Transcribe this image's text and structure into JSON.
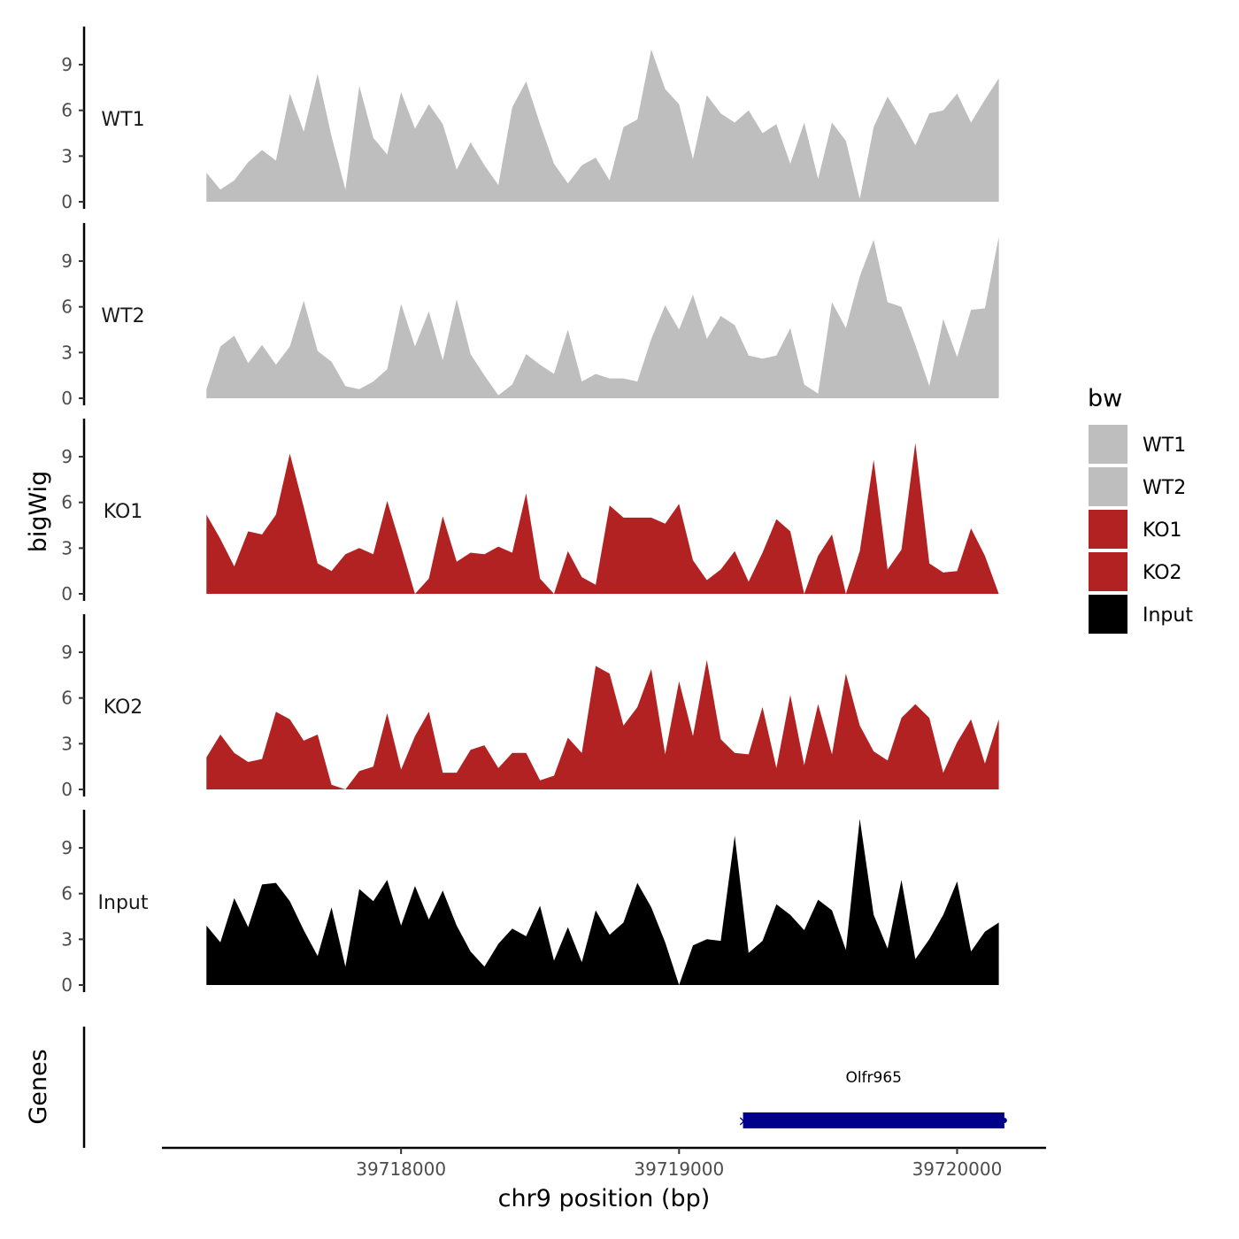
{
  "chart_data": {
    "type": "area",
    "ylabel": "bigWig",
    "xlabel": "chr9 position (bp)",
    "gene_panel_label": "Genes",
    "xlim": [
      39717140,
      39720320
    ],
    "xticks": [
      39718000,
      39719000,
      39720000
    ],
    "xtick_labels": [
      "39718000",
      "39719000",
      "39720000"
    ],
    "ylim": [
      0,
      11.5
    ],
    "yticks": [
      0,
      3,
      6,
      9
    ],
    "ytick_labels": [
      "0",
      "3",
      "6",
      "9"
    ],
    "legend": {
      "title": "bw",
      "entries": [
        {
          "label": "WT1",
          "color": "#BEBEBE"
        },
        {
          "label": "WT2",
          "color": "#BEBEBE"
        },
        {
          "label": "KO1",
          "color": "#B22222"
        },
        {
          "label": "KO2",
          "color": "#B22222"
        },
        {
          "label": "Input",
          "color": "#000000"
        }
      ]
    },
    "series": [
      {
        "name": "WT1",
        "color": "#BEBEBE",
        "x": [
          39717300,
          39717350,
          39717400,
          39717450,
          39717500,
          39717550,
          39717600,
          39717650,
          39717700,
          39717750,
          39717800,
          39717850,
          39717900,
          39717950,
          39718000,
          39718050,
          39718100,
          39718150,
          39718200,
          39718250,
          39718300,
          39718350,
          39718400,
          39718450,
          39718500,
          39718550,
          39718600,
          39718650,
          39718700,
          39718750,
          39718800,
          39718850,
          39718900,
          39718950,
          39719000,
          39719050,
          39719100,
          39719150,
          39719200,
          39719250,
          39719300,
          39719350,
          39719400,
          39719450,
          39719500,
          39719550,
          39719600,
          39719650,
          39719700,
          39719750,
          39719800,
          39719850,
          39719900,
          39719950,
          39720000,
          39720050,
          39720100,
          39720150
        ],
        "values": [
          1.9,
          0.8,
          1.4,
          2.6,
          3.4,
          2.7,
          7.1,
          4.6,
          8.4,
          4.3,
          0.8,
          7.6,
          4.2,
          3.1,
          7.2,
          4.8,
          6.4,
          5.1,
          2.1,
          3.9,
          2.4,
          1.1,
          6.2,
          7.9,
          5.1,
          2.5,
          1.2,
          2.4,
          2.9,
          1.4,
          4.9,
          5.4,
          10.0,
          7.4,
          6.4,
          2.8,
          7.0,
          5.8,
          5.2,
          6.0,
          4.5,
          5.1,
          2.5,
          5.2,
          1.5,
          5.2,
          4.0,
          0.2,
          4.9,
          6.9,
          5.4,
          3.7,
          5.8,
          6.0,
          7.1,
          5.2,
          6.7,
          8.1
        ]
      },
      {
        "name": "WT2",
        "color": "#BEBEBE",
        "x": [
          39717300,
          39717350,
          39717400,
          39717450,
          39717500,
          39717550,
          39717600,
          39717650,
          39717700,
          39717750,
          39717800,
          39717850,
          39717900,
          39717950,
          39718000,
          39718050,
          39718100,
          39718150,
          39718200,
          39718250,
          39718300,
          39718350,
          39718400,
          39718450,
          39718500,
          39718550,
          39718600,
          39718650,
          39718700,
          39718750,
          39718800,
          39718850,
          39718900,
          39718950,
          39719000,
          39719050,
          39719100,
          39719150,
          39719200,
          39719250,
          39719300,
          39719350,
          39719400,
          39719450,
          39719500,
          39719550,
          39719600,
          39719650,
          39719700,
          39719750,
          39719800,
          39719850,
          39719900,
          39719950,
          39720000,
          39720050,
          39720100,
          39720150
        ],
        "values": [
          0.6,
          3.4,
          4.1,
          2.3,
          3.5,
          2.2,
          3.4,
          6.4,
          3.1,
          2.4,
          0.8,
          0.6,
          1.1,
          1.9,
          6.2,
          3.4,
          5.7,
          2.5,
          6.5,
          2.9,
          1.5,
          0.2,
          0.9,
          2.9,
          2.2,
          1.6,
          4.5,
          1.1,
          1.6,
          1.3,
          1.3,
          1.1,
          3.9,
          6.1,
          4.5,
          6.8,
          3.9,
          5.4,
          4.8,
          2.8,
          2.6,
          2.8,
          4.6,
          0.9,
          0.3,
          6.3,
          4.6,
          8.0,
          10.4,
          6.3,
          6.0,
          3.5,
          0.8,
          5.2,
          2.7,
          5.8,
          5.9,
          10.6
        ]
      },
      {
        "name": "KO1",
        "color": "#B22222",
        "x": [
          39717300,
          39717350,
          39717400,
          39717450,
          39717500,
          39717550,
          39717600,
          39717650,
          39717700,
          39717750,
          39717800,
          39717850,
          39717900,
          39717950,
          39718000,
          39718050,
          39718100,
          39718150,
          39718200,
          39718250,
          39718300,
          39718350,
          39718400,
          39718450,
          39718500,
          39718550,
          39718600,
          39718650,
          39718700,
          39718750,
          39718800,
          39718850,
          39718900,
          39718950,
          39719000,
          39719050,
          39719100,
          39719150,
          39719200,
          39719250,
          39719300,
          39719350,
          39719400,
          39719450,
          39719500,
          39719550,
          39719600,
          39719650,
          39719700,
          39719750,
          39719800,
          39719850,
          39719900,
          39719950,
          39720000,
          39720050,
          39720100,
          39720150
        ],
        "values": [
          5.2,
          3.6,
          1.8,
          4.1,
          3.9,
          5.2,
          9.2,
          5.7,
          2.0,
          1.5,
          2.6,
          3.0,
          2.6,
          6.1,
          3.1,
          0,
          1.0,
          5.1,
          2.1,
          2.7,
          2.6,
          3.1,
          2.7,
          6.6,
          1.0,
          0,
          2.8,
          1.1,
          0.6,
          5.8,
          5.0,
          5.0,
          5.0,
          4.6,
          5.9,
          2.2,
          0.9,
          1.6,
          2.8,
          0.8,
          2.7,
          4.9,
          4.1,
          0,
          2.5,
          3.9,
          0,
          2.8,
          8.8,
          1.6,
          2.9,
          9.9,
          2.0,
          1.4,
          1.5,
          4.3,
          2.5,
          0
        ]
      },
      {
        "name": "KO2",
        "color": "#B22222",
        "x": [
          39717300,
          39717350,
          39717400,
          39717450,
          39717500,
          39717550,
          39717600,
          39717650,
          39717700,
          39717750,
          39717800,
          39717850,
          39717900,
          39717950,
          39718000,
          39718050,
          39718100,
          39718150,
          39718200,
          39718250,
          39718300,
          39718350,
          39718400,
          39718450,
          39718500,
          39718550,
          39718600,
          39718650,
          39718700,
          39718750,
          39718800,
          39718850,
          39718900,
          39718950,
          39719000,
          39719050,
          39719100,
          39719150,
          39719200,
          39719250,
          39719300,
          39719350,
          39719400,
          39719450,
          39719500,
          39719550,
          39719600,
          39719650,
          39719700,
          39719750,
          39719800,
          39719850,
          39719900,
          39719950,
          39720000,
          39720050,
          39720100,
          39720150
        ],
        "values": [
          2.1,
          3.6,
          2.4,
          1.8,
          2.0,
          5.1,
          4.6,
          3.2,
          3.6,
          0.3,
          0,
          1.2,
          1.5,
          5.0,
          1.3,
          3.5,
          5.1,
          1.1,
          1.1,
          2.6,
          2.9,
          1.4,
          2.4,
          2.4,
          0.6,
          0.9,
          3.4,
          2.4,
          8.1,
          7.6,
          4.2,
          5.4,
          7.9,
          2.3,
          7.1,
          3.5,
          8.5,
          3.3,
          2.4,
          2.3,
          5.4,
          1.4,
          6.2,
          1.6,
          5.6,
          2.3,
          7.6,
          4.2,
          2.5,
          1.9,
          4.7,
          5.6,
          4.7,
          1.1,
          3.1,
          4.6,
          1.7,
          4.6
        ]
      },
      {
        "name": "Input",
        "color": "#000000",
        "x": [
          39717300,
          39717350,
          39717400,
          39717450,
          39717500,
          39717550,
          39717600,
          39717650,
          39717700,
          39717750,
          39717800,
          39717850,
          39717900,
          39717950,
          39718000,
          39718050,
          39718100,
          39718150,
          39718200,
          39718250,
          39718300,
          39718350,
          39718400,
          39718450,
          39718500,
          39718550,
          39718600,
          39718650,
          39718700,
          39718750,
          39718800,
          39718850,
          39718900,
          39718950,
          39719000,
          39719050,
          39719100,
          39719150,
          39719200,
          39719250,
          39719300,
          39719350,
          39719400,
          39719450,
          39719500,
          39719550,
          39719600,
          39719650,
          39719700,
          39719750,
          39719800,
          39719850,
          39719900,
          39719950,
          39720000,
          39720050,
          39720100,
          39720150
        ],
        "values": [
          3.9,
          2.8,
          5.7,
          3.8,
          6.6,
          6.7,
          5.5,
          3.6,
          1.9,
          5.1,
          1.2,
          6.3,
          5.5,
          6.9,
          3.9,
          6.5,
          4.3,
          6.2,
          3.9,
          2.2,
          1.2,
          2.7,
          3.7,
          3.2,
          5.2,
          1.6,
          3.8,
          1.5,
          4.9,
          3.3,
          4.1,
          6.7,
          5.1,
          2.8,
          0,
          2.6,
          3.0,
          2.9,
          9.8,
          2.1,
          2.9,
          5.3,
          4.6,
          3.6,
          5.6,
          4.9,
          2.3,
          10.9,
          4.6,
          2.4,
          6.9,
          1.7,
          3.0,
          4.6,
          6.8,
          2.2,
          3.5,
          4.1
        ]
      }
    ],
    "genes": [
      {
        "name": "Olfr965",
        "start": 39719230,
        "end": 39720170,
        "color": "#00008B",
        "strand_mark": "×"
      }
    ]
  }
}
